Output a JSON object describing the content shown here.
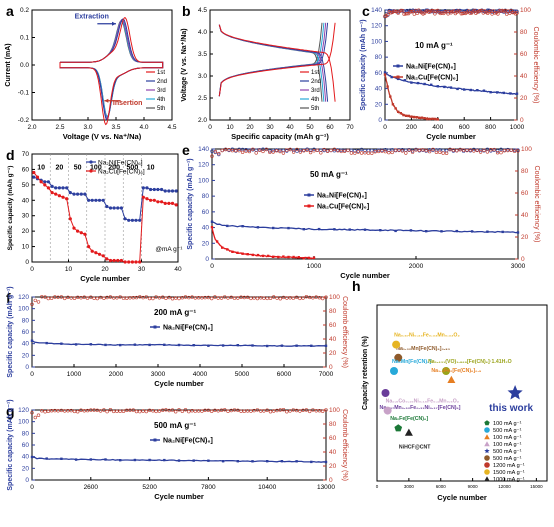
{
  "chart_data": [
    {
      "panel": "a",
      "type": "line",
      "xlabel": "Voltage (V vs. Na⁺/Na)",
      "ylabel": "Current (mA)",
      "xlim": [
        1.5,
        4.5
      ],
      "ylim": [
        -0.2,
        0.2
      ],
      "xticks": [
        "2.0",
        "2.5",
        "3.0",
        "3.5",
        "4.0",
        "4.5"
      ],
      "yticks": [
        "-0.2",
        "-0.1",
        "0.0",
        "0.1",
        "0.2"
      ],
      "annotations": [
        "Extraction",
        "Insertion"
      ],
      "legend": [
        "1st",
        "2nd",
        "3rd",
        "4th",
        "5th"
      ],
      "colors": [
        "#e31a1c",
        "#2c3e9e",
        "#8e44ad",
        "#27a9d9",
        "#555555"
      ],
      "anodic_peak_v": [
        3.5,
        3.46,
        3.44,
        3.43,
        3.42
      ],
      "anodic_peak_i": [
        0.14,
        0.13,
        0.125,
        0.12,
        0.118
      ],
      "cathodic_peak_v": [
        3.08,
        3.1,
        3.1,
        3.11,
        3.11
      ],
      "cathodic_peak_i": [
        -0.19,
        -0.17,
        -0.165,
        -0.16,
        -0.158
      ]
    },
    {
      "panel": "b",
      "type": "line",
      "xlabel": "Specific capacity (mAh g⁻¹)",
      "ylabel": "Voltage (V vs. Na⁺/Na)",
      "xlim": [
        -5,
        70
      ],
      "ylim": [
        1.5,
        4.5
      ],
      "xticks": [
        "0",
        "10",
        "20",
        "30",
        "40",
        "50",
        "60",
        "70"
      ],
      "yticks": [
        "2.0",
        "2.5",
        "3.0",
        "3.5",
        "4.0",
        "4.5"
      ],
      "legend": [
        "1st",
        "2nd",
        "3rd",
        "4th",
        "5th"
      ],
      "colors": [
        "#e31a1c",
        "#2c3e9e",
        "#8e44ad",
        "#27a9d9",
        "#555555"
      ],
      "capacities": [
        62,
        58,
        57,
        56,
        55
      ]
    },
    {
      "panel": "c",
      "type": "line",
      "label": "10 mA g⁻¹",
      "xlabel": "Cycle number",
      "ylabel": "Specific capacity (mAh g⁻¹)",
      "y2label": "Coulombic efficiency (%)",
      "xlim": [
        0,
        1000
      ],
      "ylim": [
        0,
        140
      ],
      "y2lim": [
        0,
        100
      ],
      "xticks": [
        "0",
        "200",
        "400",
        "600",
        "800",
        "1000"
      ],
      "yticks": [
        "0",
        "20",
        "40",
        "60",
        "80",
        "100",
        "120",
        "140"
      ],
      "y2ticks": [
        "0",
        "20",
        "40",
        "60",
        "80",
        "100"
      ],
      "series": [
        {
          "name": "Na₂Ni[Fe(CN)₆]",
          "color": "#2c3e9e",
          "x": [
            0,
            50,
            100,
            200,
            400,
            600,
            800,
            1000
          ],
          "y": [
            60,
            55,
            52,
            48,
            43,
            39,
            36,
            33
          ]
        },
        {
          "name": "Na₂Cu[Fe(CN)₆]",
          "color": "#c0392b",
          "x": [
            0,
            30,
            60,
            100,
            150,
            200,
            300,
            400
          ],
          "y": [
            58,
            35,
            20,
            10,
            6,
            4,
            2,
            1
          ]
        }
      ],
      "ce": [
        {
          "color": "#2c3e9e",
          "value": 99
        },
        {
          "color": "#c0392b",
          "value": 98
        }
      ]
    },
    {
      "panel": "d",
      "type": "line",
      "unit_label": "@mA g⁻¹",
      "xlabel": "Cycle number",
      "ylabel": "Specific capacity (mAh g⁻¹)",
      "xlim": [
        0,
        40
      ],
      "ylim": [
        0,
        70
      ],
      "xticks": [
        "0",
        "10",
        "20",
        "30",
        "40"
      ],
      "yticks": [
        "0",
        "10",
        "20",
        "30",
        "40",
        "50",
        "60",
        "70"
      ],
      "rates": [
        "10",
        "20",
        "50",
        "100",
        "200",
        "500",
        "10"
      ],
      "series": [
        {
          "name": "Na₂Ni[Fe(CN)₆]",
          "color": "#2c3e9e",
          "values": [
            55,
            54,
            53,
            52,
            52,
            49,
            48,
            48,
            48,
            48,
            45,
            44,
            44,
            44,
            44,
            40,
            40,
            40,
            40,
            40,
            36,
            35,
            35,
            35,
            35,
            28,
            27,
            27,
            27,
            27,
            48,
            48,
            47,
            47,
            47,
            47,
            46,
            46,
            46,
            46
          ]
        },
        {
          "name": "Na₂Cu[Fe(CN)₆]",
          "color": "#e31a1c",
          "values": [
            58,
            55,
            52,
            50,
            48,
            45,
            44,
            43,
            42,
            41,
            28,
            22,
            20,
            19,
            18,
            10,
            7,
            6,
            5,
            4,
            2,
            1,
            1,
            1,
            1,
            0,
            0,
            0,
            0,
            0,
            42,
            41,
            40,
            40,
            39,
            39,
            38,
            38,
            38,
            37
          ]
        }
      ]
    },
    {
      "panel": "e",
      "type": "line",
      "label": "50 mA g⁻¹",
      "xlabel": "Cycle number",
      "ylabel": "Specific capacity (mAh g⁻¹)",
      "y2label": "Coulombic efficiency (%)",
      "xlim": [
        0,
        3000
      ],
      "ylim": [
        0,
        140
      ],
      "y2lim": [
        0,
        100
      ],
      "xticks": [
        "0",
        "1000",
        "2000",
        "3000"
      ],
      "yticks": [
        "0",
        "20",
        "40",
        "60",
        "80",
        "100",
        "120",
        "140"
      ],
      "y2ticks": [
        "0",
        "20",
        "40",
        "60",
        "80",
        "100"
      ],
      "series": [
        {
          "name": "Na₂Ni[Fe(CN)₆]",
          "color": "#2c3e9e",
          "x": [
            0,
            50,
            200,
            500,
            1000,
            1500,
            2000,
            2500,
            3000
          ],
          "y": [
            47,
            44,
            42,
            40,
            38,
            37,
            36,
            35,
            34
          ]
        },
        {
          "name": "Na₂Cu[Fe(CN)₆]",
          "color": "#e31a1c",
          "x": [
            0,
            30,
            100,
            200,
            400,
            600,
            800,
            1000
          ],
          "y": [
            40,
            25,
            15,
            9,
            5,
            3,
            2,
            1
          ]
        }
      ],
      "ce": [
        {
          "color": "#2c3e9e",
          "value": 99
        },
        {
          "color": "#c0392b",
          "value": 98
        }
      ]
    },
    {
      "panel": "f",
      "type": "line",
      "label": "200 mA g⁻¹",
      "xlabel": "Cycle number",
      "ylabel": "Specific capacity (mAh g⁻¹)",
      "y2label": "Coulomb efficiency (%)",
      "xlim": [
        0,
        7000
      ],
      "ylim": [
        0,
        120
      ],
      "y2lim": [
        0,
        100
      ],
      "xticks": [
        "0",
        "1000",
        "2000",
        "3000",
        "4000",
        "5000",
        "6000",
        "7000"
      ],
      "yticks": [
        "0",
        "20",
        "40",
        "60",
        "80",
        "100",
        "120"
      ],
      "y2ticks": [
        "0",
        "20",
        "40",
        "60",
        "80",
        "100"
      ],
      "series": [
        {
          "name": "Na₂Ni[Fe(CN)₆]",
          "color": "#2c3e9e",
          "x": [
            0,
            100,
            500,
            1000,
            2000,
            3000,
            4000,
            5000,
            6000,
            7000
          ],
          "y": [
            45,
            42,
            40,
            39,
            38,
            38,
            37,
            37,
            36,
            36
          ]
        }
      ],
      "ce": [
        {
          "color": "#c0392b",
          "value": 99
        }
      ]
    },
    {
      "panel": "g",
      "type": "line",
      "label": "500 mA g⁻¹",
      "xlabel": "Cycle number",
      "ylabel": "Specific capacity (mAh g⁻¹)",
      "y2label": "Coulomb efficiency (%)",
      "xlim": [
        0,
        13000
      ],
      "ylim": [
        0,
        120
      ],
      "y2lim": [
        0,
        100
      ],
      "xticks": [
        "0",
        "2600",
        "5200",
        "7800",
        "10400",
        "13000"
      ],
      "yticks": [
        "0",
        "20",
        "40",
        "60",
        "80",
        "100",
        "120"
      ],
      "y2ticks": [
        "0",
        "20",
        "40",
        "60",
        "80",
        "100"
      ],
      "series": [
        {
          "name": "Na₂Ni[Fe(CN)₆]",
          "color": "#2c3e9e",
          "x": [
            0,
            200,
            1000,
            2600,
            5200,
            7800,
            10400,
            13000
          ],
          "y": [
            40,
            37,
            36,
            35,
            34,
            33,
            32,
            31
          ]
        }
      ],
      "ce": [
        {
          "color": "#c0392b",
          "value": 99
        }
      ]
    },
    {
      "panel": "h",
      "type": "scatter",
      "xlabel": "Cycle number",
      "ylabel": "Capacity retention (%)",
      "xlim": [
        0,
        16000
      ],
      "ylim": [
        60,
        100
      ],
      "xticks": [
        "0",
        "3000",
        "6000",
        "9000",
        "12000",
        "15000"
      ],
      "points": [
        {
          "label": "Na₁.₃₂Mn[Fe(CN)₆]₀.₈₃",
          "color": "#8e5a2b",
          "marker": "circle",
          "x": 2000,
          "y": 88
        },
        {
          "label": "Na₂Mn[Fe(CN)₆]",
          "color": "#27a9d9",
          "marker": "circle",
          "x": 1600,
          "y": 85
        },
        {
          "label": "Na₀.₆₇Ni₀.₃₃Fe₀.₃₃Mn₀.₃₃O₂",
          "color": "#e6b422",
          "marker": "circle",
          "x": 1800,
          "y": 91
        },
        {
          "label": "Na₁.₄₃₁(VO)₁.₈₆₉[Fe(CN)₆]·1.41H₂O",
          "color": "#9aa31a",
          "marker": "circle",
          "x": 6500,
          "y": 85
        },
        {
          "label": "Na₁.₅Fe₂[Fe(CN)₆]₀.₉",
          "color": "#e67e22",
          "marker": "triangle",
          "x": 7000,
          "y": 83
        },
        {
          "label": "Na₁.₃₇Mn₀.₅₂Fe₀.₃₁Ni₀.₁₇[Fe(CN)₆]",
          "color": "#6a3d9a",
          "marker": "circle",
          "x": 800,
          "y": 80
        },
        {
          "label": "Na₀.₅Co₀.₁₅Ni₀.₁₅Fe₀.₁Mn₀.₅O₂",
          "color": "#c8a2c8",
          "marker": "circle",
          "x": 1000,
          "y": 76
        },
        {
          "label": "Na₂Fe[Fe(CN)₆]",
          "color": "#1b7837",
          "marker": "pentagon",
          "x": 2000,
          "y": 72
        },
        {
          "label": "NiHCF@CNT",
          "color": "#222222",
          "marker": "triangle",
          "x": 3000,
          "y": 71
        },
        {
          "label": "this work",
          "color": "#2c3e9e",
          "marker": "star",
          "x": 13000,
          "y": 80
        }
      ],
      "legend": [
        {
          "label": "100 mA g⁻¹",
          "color": "#1b7837",
          "marker": "pentagon"
        },
        {
          "label": "500 mA g⁻¹",
          "color": "#27a9d9",
          "marker": "circle"
        },
        {
          "label": "100 mA g⁻¹",
          "color": "#e67e22",
          "marker": "triangle"
        },
        {
          "label": "100 mA g⁻¹",
          "color": "#c8a2c8",
          "marker": "triangle"
        },
        {
          "label": "500 mA g⁻¹",
          "color": "#2c3e9e",
          "marker": "star"
        },
        {
          "label": "500 mA g⁻¹",
          "color": "#8e5a2b",
          "marker": "circle"
        },
        {
          "label": "1200 mA g⁻¹",
          "color": "#c0392b",
          "marker": "circle"
        },
        {
          "label": "1500 mA g⁻¹",
          "color": "#e6b422",
          "marker": "circle"
        },
        {
          "label": "1000 mA g⁻¹",
          "color": "#222222",
          "marker": "triangle"
        }
      ]
    }
  ]
}
